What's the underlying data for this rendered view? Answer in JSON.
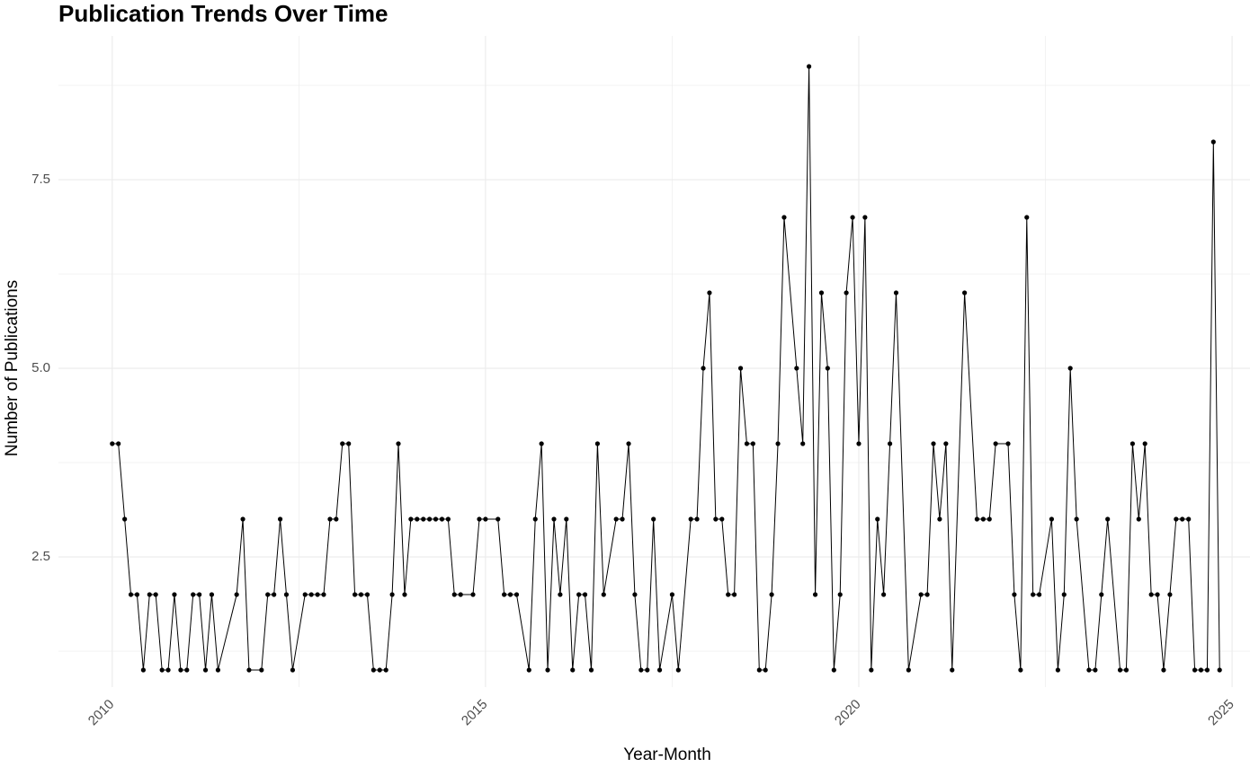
{
  "chart_data": {
    "type": "line",
    "title": "Publication Trends Over Time",
    "x_label": "Year-Month",
    "y_label": "Number of Publications",
    "x": [
      2010,
      2010.083,
      2010.167,
      2010.25,
      2010.333,
      2010.417,
      2010.5,
      2010.583,
      2010.667,
      2010.75,
      2010.833,
      2010.917,
      2011,
      2011.083,
      2011.167,
      2011.25,
      2011.333,
      2011.417,
      2011.667,
      2011.75,
      2011.833,
      2012,
      2012.083,
      2012.167,
      2012.25,
      2012.333,
      2012.417,
      2012.583,
      2012.667,
      2012.75,
      2012.833,
      2012.917,
      2013,
      2013.083,
      2013.167,
      2013.25,
      2013.333,
      2013.417,
      2013.5,
      2013.583,
      2013.667,
      2013.75,
      2013.833,
      2013.917,
      2014,
      2014.083,
      2014.167,
      2014.25,
      2014.333,
      2014.417,
      2014.5,
      2014.583,
      2014.667,
      2014.833,
      2014.917,
      2015,
      2015.167,
      2015.25,
      2015.333,
      2015.417,
      2015.583,
      2015.667,
      2015.75,
      2015.833,
      2015.917,
      2016,
      2016.083,
      2016.167,
      2016.25,
      2016.333,
      2016.417,
      2016.5,
      2016.583,
      2016.75,
      2016.833,
      2016.917,
      2017,
      2017.083,
      2017.167,
      2017.25,
      2017.333,
      2017.5,
      2017.583,
      2017.75,
      2017.833,
      2017.917,
      2018,
      2018.083,
      2018.167,
      2018.25,
      2018.333,
      2018.417,
      2018.5,
      2018.583,
      2018.667,
      2018.75,
      2018.833,
      2018.917,
      2019,
      2019.167,
      2019.25,
      2019.333,
      2019.417,
      2019.5,
      2019.583,
      2019.667,
      2019.75,
      2019.833,
      2019.917,
      2020,
      2020.083,
      2020.167,
      2020.25,
      2020.333,
      2020.417,
      2020.5,
      2020.667,
      2020.833,
      2020.917,
      2021,
      2021.083,
      2021.167,
      2021.25,
      2021.417,
      2021.583,
      2021.667,
      2021.75,
      2021.833,
      2022,
      2022.083,
      2022.167,
      2022.25,
      2022.333,
      2022.417,
      2022.583,
      2022.667,
      2022.75,
      2022.833,
      2022.917,
      2023.083,
      2023.167,
      2023.25,
      2023.333,
      2023.5,
      2023.583,
      2023.667,
      2023.75,
      2023.833,
      2023.917,
      2024,
      2024.083,
      2024.167,
      2024.25,
      2024.333,
      2024.417,
      2024.5,
      2024.583,
      2024.667,
      2024.75,
      2024.833
    ],
    "values": [
      4,
      4,
      3,
      2,
      2,
      1,
      2,
      2,
      1,
      1,
      2,
      1,
      1,
      2,
      2,
      1,
      2,
      1,
      2,
      3,
      1,
      1,
      2,
      2,
      3,
      2,
      1,
      2,
      2,
      2,
      2,
      3,
      3,
      4,
      4,
      2,
      2,
      2,
      1,
      1,
      1,
      2,
      4,
      2,
      3,
      3,
      3,
      3,
      3,
      3,
      3,
      2,
      2,
      2,
      3,
      3,
      3,
      2,
      2,
      2,
      1,
      3,
      4,
      1,
      3,
      2,
      3,
      1,
      2,
      2,
      1,
      4,
      2,
      3,
      3,
      4,
      2,
      1,
      1,
      3,
      1,
      2,
      1,
      3,
      3,
      5,
      6,
      3,
      3,
      2,
      2,
      5,
      4,
      4,
      1,
      1,
      2,
      4,
      7,
      5,
      4,
      9,
      2,
      6,
      5,
      1,
      2,
      6,
      7,
      4,
      7,
      1,
      3,
      2,
      4,
      6,
      1,
      2,
      2,
      4,
      3,
      4,
      1,
      6,
      3,
      3,
      3,
      4,
      4,
      2,
      1,
      7,
      2,
      2,
      3,
      1,
      2,
      5,
      3,
      1,
      1,
      2,
      3,
      1,
      1,
      4,
      3,
      4,
      2,
      2,
      1,
      2,
      3,
      3,
      3,
      1,
      1,
      1,
      8,
      1
    ],
    "color": "#000000",
    "xlim": [
      2009.28,
      2025.24
    ],
    "xticks": [
      2010,
      2015,
      2020,
      2025
    ],
    "x_minor_ticks": [
      2012.5,
      2017.5,
      2022.5
    ],
    "ylim": [
      0.774,
      9.405
    ],
    "yticks": [
      2.5,
      {
        "value": 5,
        "label": "5.0"
      },
      7.5
    ],
    "y_minor_ticks": [
      1.25,
      3.75,
      6.25,
      8.75
    ],
    "grid": true,
    "grid_color": "#ebebeb"
  }
}
